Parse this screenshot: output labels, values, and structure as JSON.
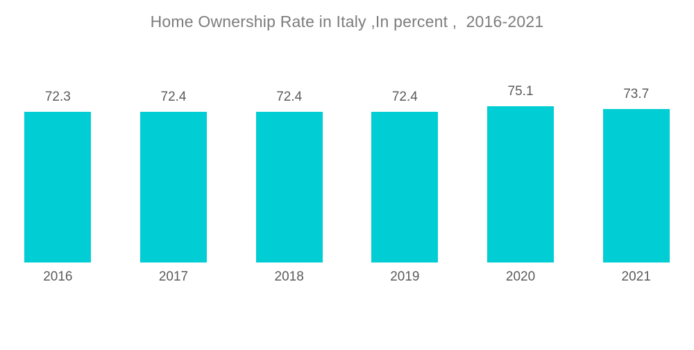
{
  "title": "Home Ownership Rate in Italy ,In percent ,  2016-2021",
  "colors": {
    "bar": "#00CDD4",
    "title_text": "#7C7C7C",
    "label_text": "#5A5A5A",
    "background": "#FFFFFF"
  },
  "chart_data": {
    "type": "bar",
    "title": "Home Ownership Rate in Italy ,In percent ,  2016-2021",
    "categories": [
      "2016",
      "2017",
      "2018",
      "2019",
      "2020",
      "2021"
    ],
    "values": [
      72.3,
      72.4,
      72.4,
      72.4,
      75.1,
      73.7
    ],
    "value_labels": [
      "72.3",
      "72.4",
      "72.4",
      "72.4",
      "75.1",
      "73.7"
    ],
    "xlabel": "",
    "ylabel": "",
    "ylim": [
      0,
      126
    ],
    "grid": false,
    "legend": false,
    "axes_visible": false,
    "bar_color": "#00CDD4"
  }
}
